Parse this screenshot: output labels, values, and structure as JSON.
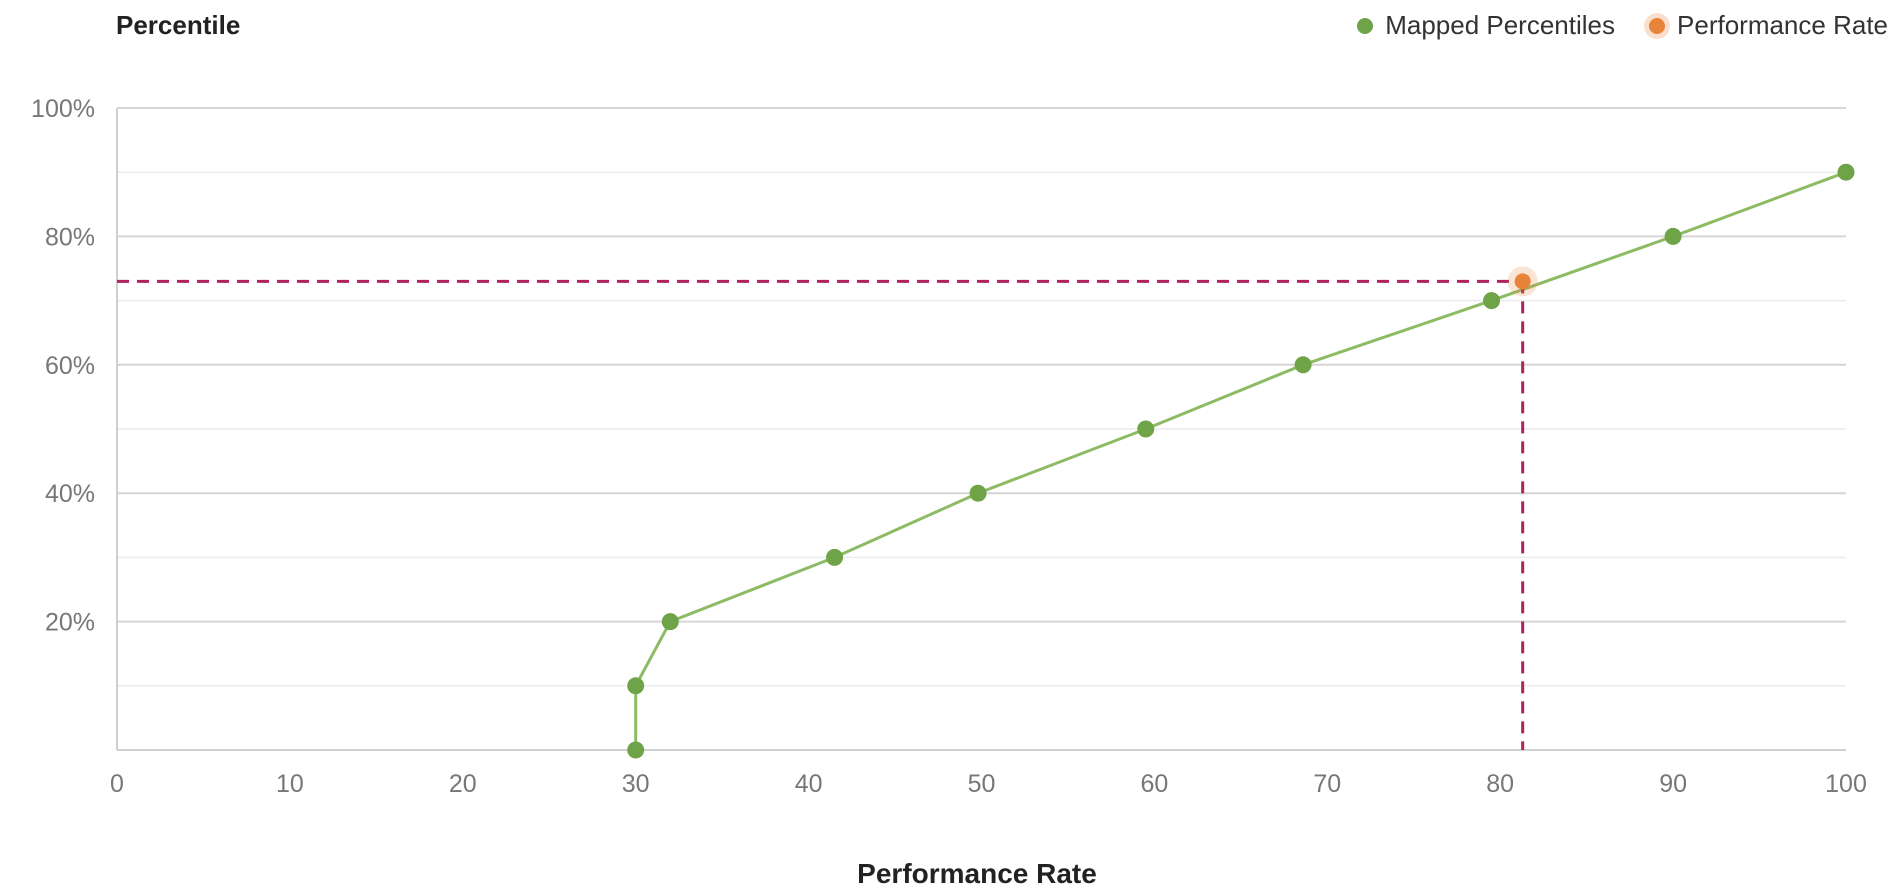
{
  "chart_data": {
    "type": "line",
    "title": "",
    "ylabel": "Percentile",
    "xlabel": "Performance Rate",
    "xlim": [
      0,
      100
    ],
    "ylim": [
      0,
      100
    ],
    "x_ticks": [
      "0",
      "10",
      "20",
      "30",
      "40",
      "50",
      "60",
      "70",
      "80",
      "90",
      "100"
    ],
    "y_ticks": [
      "20%",
      "40%",
      "60%",
      "80%",
      "100%"
    ],
    "grid": true,
    "legend_position": "top-right",
    "series": [
      {
        "name": "Mapped Percentiles",
        "color": "#6ea447",
        "points": [
          {
            "x": 30,
            "y": 0
          },
          {
            "x": 30,
            "y": 10
          },
          {
            "x": 32,
            "y": 20
          },
          {
            "x": 41.5,
            "y": 30
          },
          {
            "x": 49.8,
            "y": 40
          },
          {
            "x": 59.5,
            "y": 50
          },
          {
            "x": 68.6,
            "y": 60
          },
          {
            "x": 79.5,
            "y": 70
          },
          {
            "x": 90,
            "y": 80
          },
          {
            "x": 100,
            "y": 90
          }
        ]
      },
      {
        "name": "Performance Rate",
        "color": "#e8843a",
        "points": [
          {
            "x": 81.3,
            "y": 73
          }
        ]
      }
    ],
    "reference_line_color": "#b0225e"
  }
}
